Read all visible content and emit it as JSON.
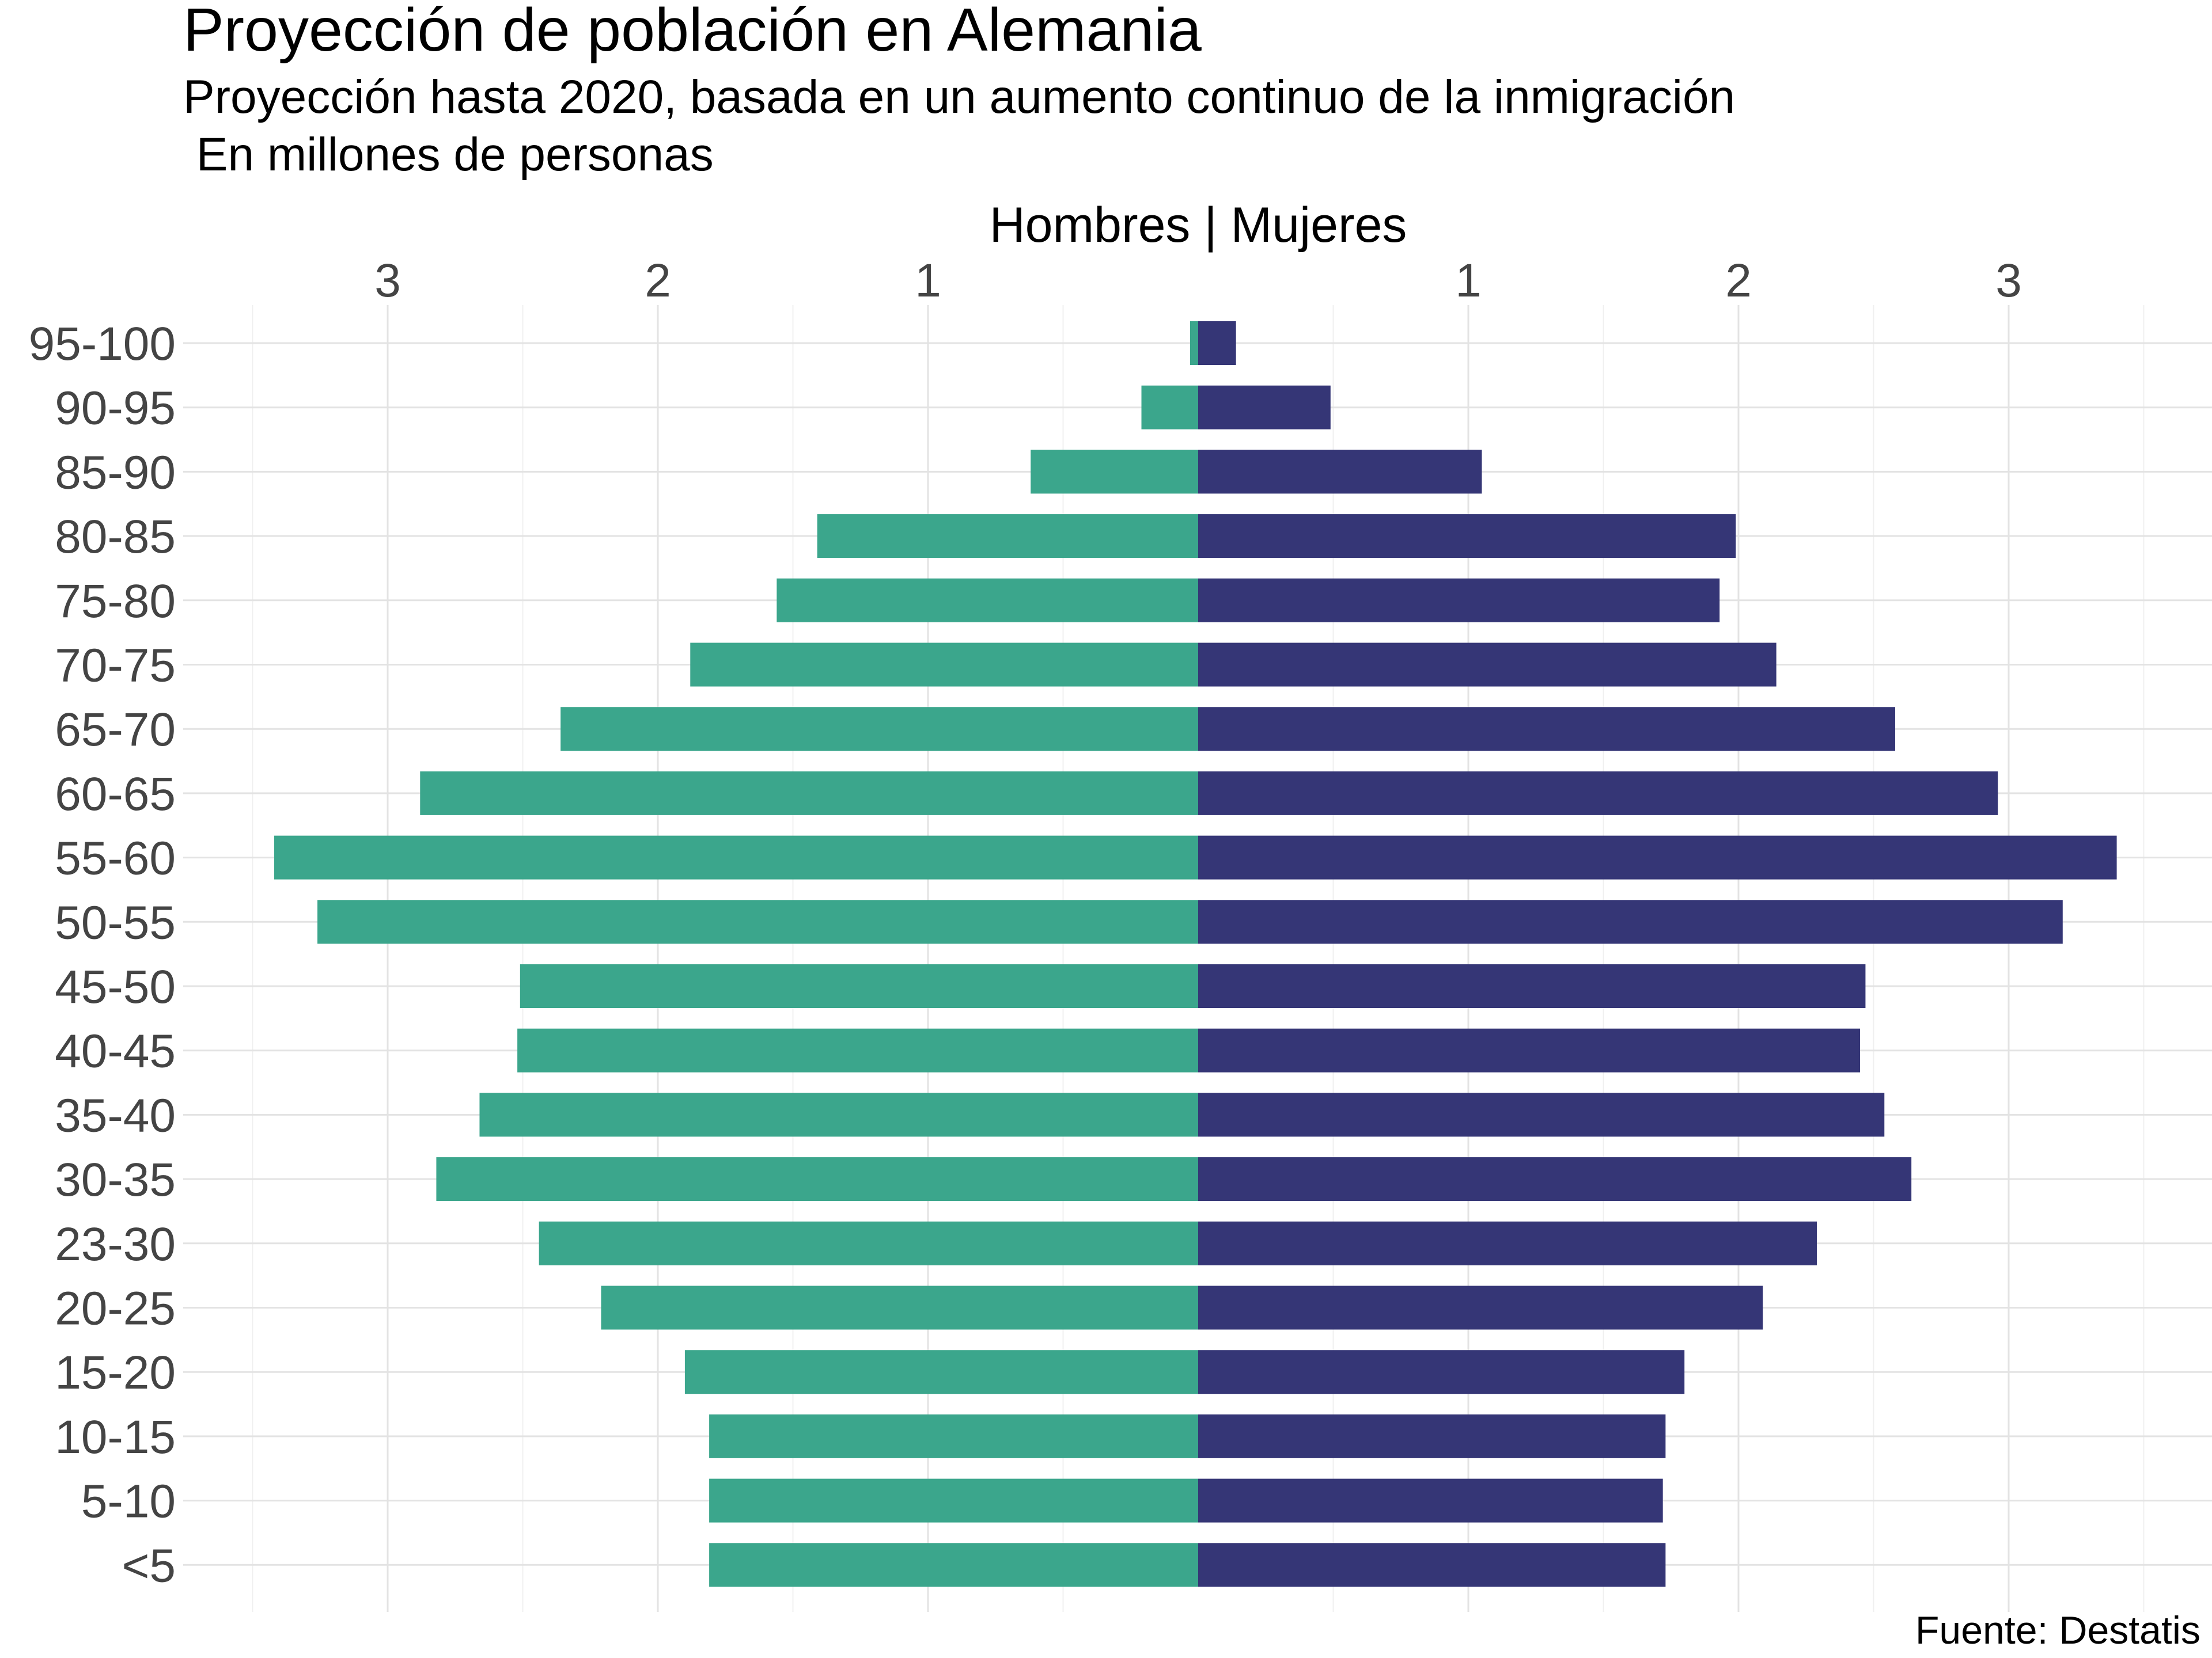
{
  "chart_data": {
    "type": "bar",
    "orientation": "horizontal-diverging",
    "title": "Proyección de población en Alemania",
    "subtitle_line1": "Proyección hasta 2020, basada en un aumento continuo de la inmigración",
    "subtitle_line2": " En millones de personas",
    "axis_label": "Hombres | Mujeres",
    "caption": "Fuente: Destatis",
    "x_ticks_left": [
      "3",
      "2",
      "1"
    ],
    "x_ticks_right": [
      "1",
      "2",
      "3"
    ],
    "xlim": [
      -3.5,
      3.5
    ],
    "grid": true,
    "categories": [
      "95-100",
      "90-95",
      "85-90",
      "80-85",
      "75-80",
      "70-75",
      "65-70",
      "60-65",
      "55-60",
      "50-55",
      "45-50",
      "40-45",
      "35-40",
      "30-35",
      "23-30",
      "20-25",
      "15-20",
      "10-15",
      "5-10",
      "<5"
    ],
    "series": [
      {
        "key": "hombres",
        "color": "#3ba68c",
        "values": [
          0.03,
          0.21,
          0.62,
          1.41,
          1.56,
          1.88,
          2.36,
          2.88,
          3.42,
          3.26,
          2.51,
          2.52,
          2.66,
          2.82,
          2.44,
          2.21,
          1.9,
          1.81,
          1.81,
          1.81
        ]
      },
      {
        "key": "mujeres",
        "color": "#353676",
        "values": [
          0.14,
          0.49,
          1.05,
          1.99,
          1.93,
          2.14,
          2.58,
          2.96,
          3.4,
          3.2,
          2.47,
          2.45,
          2.54,
          2.64,
          2.29,
          2.09,
          1.8,
          1.73,
          1.72,
          1.73
        ]
      }
    ]
  }
}
